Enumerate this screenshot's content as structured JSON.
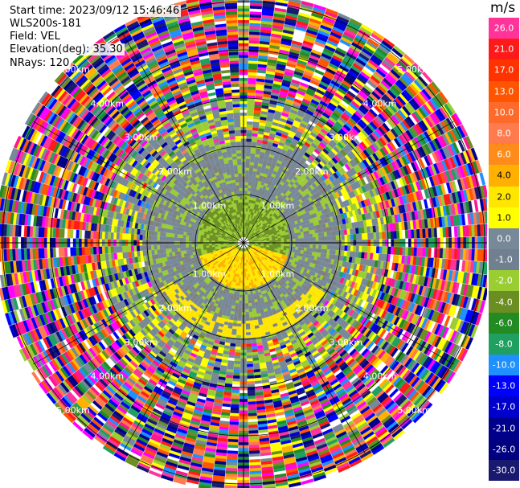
{
  "info": {
    "start_time": "Start time: 2023/09/12 15:46:46",
    "instrument": "WLS200s-181",
    "field": "Field: VEL",
    "elevation": "Elevation(deg): 35.30",
    "nrays": "NRays: 120"
  },
  "colorbar": {
    "title": "m/s",
    "levels": [
      {
        "label": "26.0",
        "color": "#ff3399"
      },
      {
        "label": "21.0",
        "color": "#ff1a1a"
      },
      {
        "label": "17.0",
        "color": "#ff3300"
      },
      {
        "label": "13.0",
        "color": "#ff5500"
      },
      {
        "label": "10.0",
        "color": "#ff6a2a"
      },
      {
        "label": "8.0",
        "color": "#ff7a4d"
      },
      {
        "label": "6.0",
        "color": "#ff8c1a"
      },
      {
        "label": "4.0",
        "color": "#ffb000"
      },
      {
        "label": "2.0",
        "color": "#ffe600"
      },
      {
        "label": "1.0",
        "color": "#ffff00"
      },
      {
        "label": "0.0",
        "color": "#778899"
      },
      {
        "label": "-1.0",
        "color": "#708090"
      },
      {
        "label": "-2.0",
        "color": "#9acd32"
      },
      {
        "label": "-4.0",
        "color": "#6b8e23"
      },
      {
        "label": "-6.0",
        "color": "#228b22"
      },
      {
        "label": "-8.0",
        "color": "#20a060"
      },
      {
        "label": "-10.0",
        "color": "#1e90ff"
      },
      {
        "label": "-13.0",
        "color": "#0000ff"
      },
      {
        "label": "-17.0",
        "color": "#0000cd"
      },
      {
        "label": "-21.0",
        "color": "#00008b"
      },
      {
        "label": "-26.0",
        "color": "#000080"
      },
      {
        "label": "-30.0",
        "color": "#191970"
      }
    ]
  },
  "rings": [
    {
      "label": "1.00km",
      "km": 1
    },
    {
      "label": "2.00km",
      "km": 2
    },
    {
      "label": "3.00km",
      "km": 3
    },
    {
      "label": "4.00km",
      "km": 4
    },
    {
      "label": "5.00km",
      "km": 5
    }
  ]
}
